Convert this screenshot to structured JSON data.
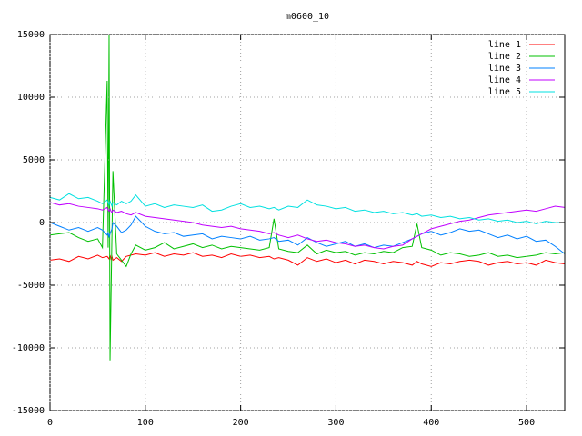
{
  "chart_data": {
    "type": "line",
    "title": "m0600_10",
    "x": [
      0,
      10,
      20,
      30,
      40,
      50,
      55,
      60,
      61,
      62,
      63,
      64,
      65,
      66,
      70,
      75,
      80,
      85,
      90,
      100,
      110,
      120,
      130,
      140,
      150,
      160,
      170,
      180,
      190,
      200,
      210,
      220,
      230,
      235,
      240,
      250,
      260,
      270,
      280,
      290,
      300,
      310,
      320,
      330,
      340,
      350,
      360,
      370,
      380,
      385,
      390,
      400,
      410,
      420,
      430,
      440,
      450,
      460,
      470,
      480,
      490,
      500,
      510,
      520,
      530,
      540
    ],
    "series": [
      {
        "name": "line 1",
        "color": "#ff0000",
        "values": [
          -3000,
          -2900,
          -3100,
          -2700,
          -2900,
          -2600,
          -2800,
          -2700,
          -2800,
          -2900,
          -2600,
          -2900,
          -2700,
          -3000,
          -2800,
          -3100,
          -2700,
          -2600,
          -2500,
          -2600,
          -2400,
          -2700,
          -2500,
          -2600,
          -2400,
          -2700,
          -2600,
          -2800,
          -2500,
          -2700,
          -2600,
          -2800,
          -2700,
          -2900,
          -2800,
          -3000,
          -3400,
          -2800,
          -3100,
          -2900,
          -3200,
          -3000,
          -3300,
          -3000,
          -3100,
          -3300,
          -3100,
          -3200,
          -3400,
          -3100,
          -3300,
          -3500,
          -3200,
          -3300,
          -3100,
          -3000,
          -3100,
          -3400,
          -3200,
          -3100,
          -3300,
          -3200,
          -3400,
          -3000,
          -3200,
          -3300
        ]
      },
      {
        "name": "line 2",
        "color": "#00c000",
        "values": [
          -1000,
          -900,
          -800,
          -1200,
          -1500,
          -1300,
          -2000,
          11300,
          -2000,
          15000,
          -11000,
          -6000,
          -1000,
          4100,
          -2500,
          -3000,
          -3500,
          -2500,
          -1800,
          -2200,
          -2000,
          -1600,
          -2100,
          -1900,
          -1700,
          -2000,
          -1800,
          -2100,
          -1900,
          -2000,
          -2100,
          -2200,
          -2000,
          300,
          -2100,
          -2300,
          -2400,
          -1800,
          -2500,
          -2200,
          -2400,
          -2300,
          -2600,
          -2400,
          -2500,
          -2300,
          -2400,
          -2000,
          -1900,
          -100,
          -2000,
          -2200,
          -2600,
          -2400,
          -2500,
          -2700,
          -2600,
          -2400,
          -2700,
          -2600,
          -2800,
          -2700,
          -2600,
          -2400,
          -2500,
          -2400
        ]
      },
      {
        "name": "line 3",
        "color": "#0080ff",
        "values": [
          0,
          -300,
          -600,
          -400,
          -700,
          -400,
          -600,
          -1000,
          -800,
          -1200,
          -900,
          -700,
          -500,
          0,
          -300,
          -800,
          -600,
          -200,
          500,
          -300,
          -700,
          -900,
          -800,
          -1100,
          -1000,
          -900,
          -1300,
          -1100,
          -1200,
          -1300,
          -1100,
          -1400,
          -1300,
          -1200,
          -1500,
          -1400,
          -1800,
          -1200,
          -1600,
          -1900,
          -1700,
          -1500,
          -1900,
          -1700,
          -2000,
          -1800,
          -1900,
          -1600,
          -1300,
          -1100,
          -900,
          -700,
          -1000,
          -800,
          -500,
          -700,
          -600,
          -900,
          -1200,
          -1000,
          -1300,
          -1100,
          -1500,
          -1400,
          -1900,
          -2500
        ]
      },
      {
        "name": "line 4",
        "color": "#c000ff",
        "values": [
          1600,
          1400,
          1500,
          1300,
          1200,
          1100,
          1000,
          1200,
          1000,
          900,
          1100,
          900,
          800,
          1000,
          800,
          900,
          700,
          600,
          800,
          500,
          400,
          300,
          200,
          100,
          0,
          -200,
          -300,
          -400,
          -300,
          -500,
          -600,
          -700,
          -900,
          -800,
          -1000,
          -1200,
          -1000,
          -1300,
          -1500,
          -1400,
          -1600,
          -1700,
          -1900,
          -1800,
          -2000,
          -2100,
          -1900,
          -1800,
          -1300,
          -1100,
          -900,
          -500,
          -300,
          -100,
          100,
          200,
          400,
          600,
          700,
          800,
          900,
          1000,
          900,
          1100,
          1300,
          1200
        ]
      },
      {
        "name": "line 5",
        "color": "#00e0e0",
        "values": [
          2000,
          1800,
          2300,
          1900,
          2000,
          1700,
          1500,
          1800,
          1600,
          1400,
          1700,
          1500,
          1300,
          1600,
          1400,
          1700,
          1500,
          1700,
          2200,
          1300,
          1500,
          1200,
          1400,
          1300,
          1200,
          1400,
          900,
          1000,
          1300,
          1500,
          1200,
          1300,
          1100,
          1200,
          1000,
          1300,
          1200,
          1800,
          1400,
          1300,
          1100,
          1200,
          900,
          1000,
          800,
          900,
          700,
          800,
          600,
          700,
          500,
          600,
          400,
          500,
          300,
          400,
          200,
          300,
          100,
          200,
          0,
          100,
          -100,
          100,
          0,
          0
        ]
      }
    ],
    "xlim": [
      0,
      540
    ],
    "xticks": [
      0,
      100,
      200,
      300,
      400,
      500
    ],
    "ylim": [
      -15000,
      15000
    ],
    "yticks": [
      -15000,
      -10000,
      -5000,
      0,
      5000,
      10000,
      15000
    ],
    "grid": true,
    "legend": "top-right"
  }
}
